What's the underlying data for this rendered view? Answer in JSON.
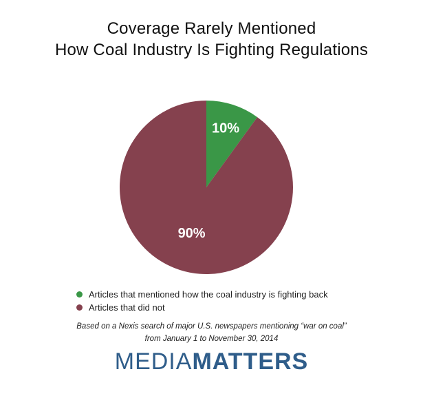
{
  "chart_data": {
    "type": "pie",
    "title": "Coverage Rarely Mentioned",
    "subtitle": "How Coal Industry Is Fighting Regulations",
    "slices": [
      {
        "label": "Articles that mentioned how the coal industry is fighting back",
        "value": 10,
        "display": "10%",
        "color": "#3a9747"
      },
      {
        "label": "Articles that did not",
        "value": 90,
        "display": "90%",
        "color": "#85414e"
      }
    ],
    "legend_position": "bottom-left"
  },
  "footnote": {
    "line1": "Based on a Nexis search of major U.S. newspapers mentioning “war on coal”",
    "line2": "from January 1 to November 30, 2014"
  },
  "logo": {
    "part1": "MEDIA",
    "part2": "MATTERS"
  }
}
